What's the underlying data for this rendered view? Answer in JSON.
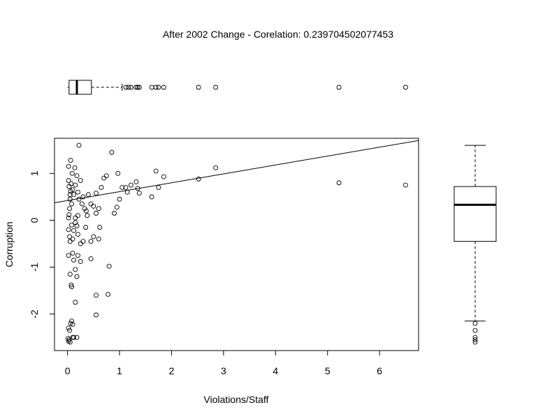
{
  "chart_data": {
    "type": "scatter",
    "title": "After 2002 Change - Corelation: 0.239704502077453",
    "xlabel": "Violations/Staff",
    "ylabel": "Corruption",
    "xlim": [
      -0.25,
      6.75
    ],
    "ylim": [
      -2.78,
      1.75
    ],
    "x_ticks": [
      0,
      1,
      2,
      3,
      4,
      5,
      6
    ],
    "y_ticks": [
      -2,
      -1,
      0,
      1
    ],
    "grid": false,
    "regression_line": {
      "intercept": 0.42,
      "slope": 0.19
    },
    "points": [
      [
        0.02,
        0.05
      ],
      [
        0.03,
        0.12
      ],
      [
        0.04,
        0.25
      ],
      [
        0.05,
        0.55
      ],
      [
        0.06,
        0.62
      ],
      [
        0.07,
        0.78
      ],
      [
        0.02,
        0.85
      ],
      [
        0.03,
        0.72
      ],
      [
        0.05,
        0.45
      ],
      [
        0.08,
        0.35
      ],
      [
        0.1,
        0.65
      ],
      [
        0.12,
        0.55
      ],
      [
        0.15,
        0.75
      ],
      [
        0.18,
        0.95
      ],
      [
        0.2,
        0.6
      ],
      [
        0.22,
        0.45
      ],
      [
        0.25,
        0.85
      ],
      [
        0.28,
        0.35
      ],
      [
        0.3,
        0.5
      ],
      [
        0.33,
        0.25
      ],
      [
        0.36,
        0.2
      ],
      [
        0.4,
        0.55
      ],
      [
        0.45,
        0.35
      ],
      [
        0.5,
        0.3
      ],
      [
        0.02,
        1.15
      ],
      [
        0.06,
        1.28
      ],
      [
        0.09,
        1.0
      ],
      [
        0.14,
        1.12
      ],
      [
        0.22,
        1.6
      ],
      [
        0.55,
        0.58
      ],
      [
        0.6,
        0.25
      ],
      [
        0.65,
        0.7
      ],
      [
        0.7,
        0.9
      ],
      [
        0.75,
        0.95
      ],
      [
        0.85,
        1.45
      ],
      [
        0.9,
        0.15
      ],
      [
        0.95,
        0.28
      ],
      [
        0.97,
        1.0
      ],
      [
        1.0,
        0.45
      ],
      [
        1.05,
        0.7
      ],
      [
        1.12,
        0.7
      ],
      [
        1.15,
        0.6
      ],
      [
        1.22,
        0.75
      ],
      [
        1.32,
        0.82
      ],
      [
        1.35,
        0.68
      ],
      [
        1.38,
        0.58
      ],
      [
        1.62,
        0.5
      ],
      [
        1.7,
        1.05
      ],
      [
        1.75,
        0.7
      ],
      [
        1.85,
        0.93
      ],
      [
        2.52,
        0.88
      ],
      [
        2.85,
        1.12
      ],
      [
        5.22,
        0.8
      ],
      [
        6.5,
        0.75
      ],
      [
        0.02,
        -0.2
      ],
      [
        0.04,
        -0.35
      ],
      [
        0.05,
        -0.45
      ],
      [
        0.08,
        -0.1
      ],
      [
        0.1,
        -0.4
      ],
      [
        0.12,
        -0.22
      ],
      [
        0.15,
        -0.05
      ],
      [
        0.18,
        -0.12
      ],
      [
        0.2,
        -0.3
      ],
      [
        0.25,
        -0.5
      ],
      [
        0.3,
        -0.45
      ],
      [
        0.35,
        -0.15
      ],
      [
        0.45,
        -0.45
      ],
      [
        0.5,
        -0.35
      ],
      [
        0.6,
        -0.4
      ],
      [
        0.62,
        -0.15
      ],
      [
        0.15,
        0.05
      ],
      [
        0.2,
        0.1
      ],
      [
        0.38,
        0.1
      ],
      [
        0.55,
        0.15
      ],
      [
        0.02,
        -0.75
      ],
      [
        0.05,
        -1.15
      ],
      [
        0.07,
        -1.38
      ],
      [
        0.1,
        -0.7
      ],
      [
        0.12,
        -0.85
      ],
      [
        0.15,
        -1.05
      ],
      [
        0.18,
        -1.2
      ],
      [
        0.2,
        -0.75
      ],
      [
        0.25,
        -0.88
      ],
      [
        0.08,
        -1.42
      ],
      [
        0.15,
        -1.75
      ],
      [
        0.45,
        -0.82
      ],
      [
        0.8,
        -0.98
      ],
      [
        0.55,
        -1.6
      ],
      [
        0.78,
        -1.58
      ],
      [
        0.55,
        -2.02
      ],
      [
        0.02,
        -2.3
      ],
      [
        0.04,
        -2.35
      ],
      [
        0.06,
        -2.2
      ],
      [
        0.08,
        -2.15
      ],
      [
        0.1,
        -2.5
      ],
      [
        0.01,
        -2.52
      ],
      [
        0.02,
        -2.58
      ],
      [
        0.03,
        -2.55
      ],
      [
        0.05,
        -2.6
      ],
      [
        0.12,
        -2.5
      ],
      [
        0.18,
        -2.5
      ],
      [
        0.1,
        -2.22
      ]
    ],
    "x_boxplot": {
      "min": 0.0,
      "q1": 0.03,
      "median": 0.18,
      "q3": 0.46,
      "whisker_high": 1.05,
      "outliers": [
        1.12,
        1.17,
        1.22,
        1.32,
        1.35,
        1.38,
        1.62,
        1.7,
        1.75,
        1.85,
        2.52,
        2.85,
        5.22,
        6.5
      ]
    },
    "y_boxplot": {
      "whisker_low": -2.15,
      "q1": -0.45,
      "median": 0.33,
      "q3": 0.72,
      "whisker_high": 1.6,
      "outliers": [
        -2.2,
        -2.35,
        -2.5,
        -2.55,
        -2.6
      ]
    }
  }
}
